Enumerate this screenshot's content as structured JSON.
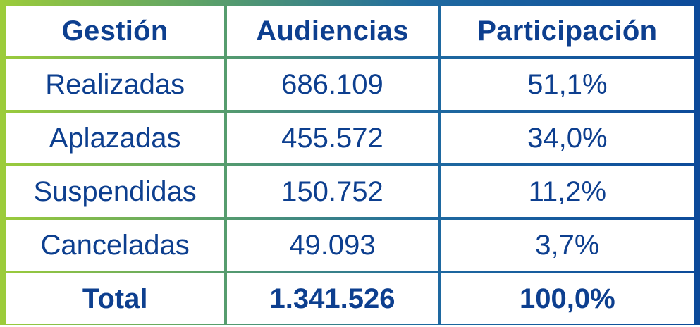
{
  "chart_data": {
    "type": "table",
    "columns": [
      "Gestión",
      "Audiencias",
      "Participación"
    ],
    "rows": [
      [
        "Realizadas",
        "686.109",
        "51,1%"
      ],
      [
        "Aplazadas",
        "455.572",
        "34,0%"
      ],
      [
        "Suspendidas",
        "150.752",
        "11,2%"
      ],
      [
        "Canceladas",
        "49.093",
        "3,7%"
      ]
    ],
    "total": [
      "Total",
      "1.341.526",
      "100,0%"
    ],
    "values": [
      686109,
      455572,
      150752,
      49093
    ],
    "percentages": [
      51.1,
      34.0,
      11.2,
      3.7
    ],
    "colors": {
      "text": "#0d3f8f",
      "gradient_start": "#9ccc3a",
      "gradient_end": "#0c4a9a"
    }
  }
}
